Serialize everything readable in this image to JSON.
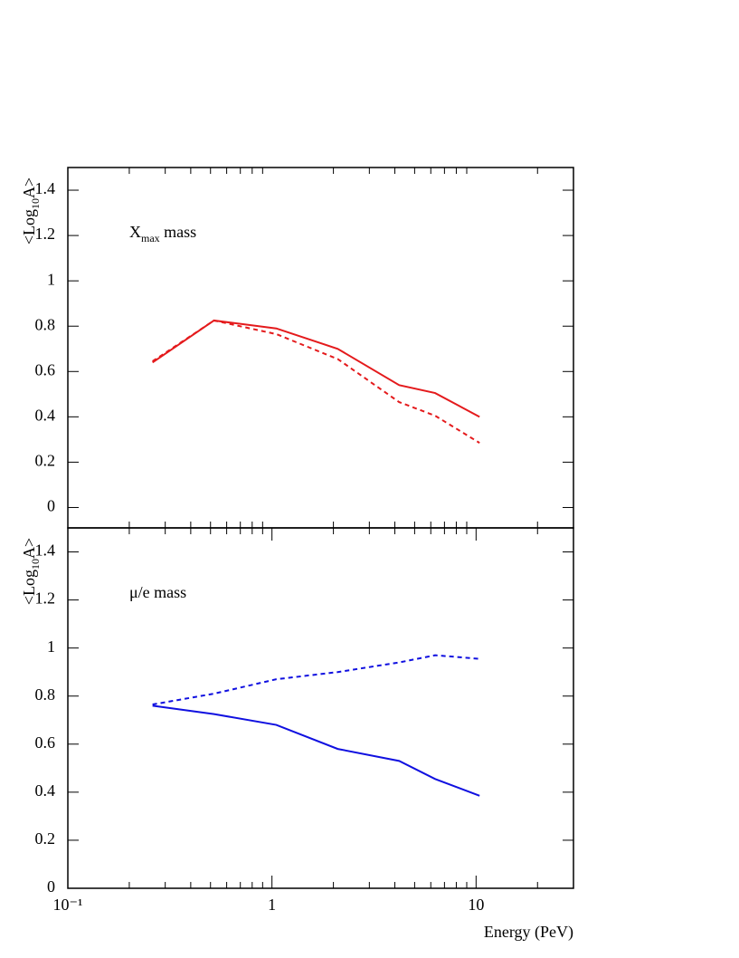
{
  "chart_data": [
    {
      "type": "line",
      "y_label": {
        "main": "<Log",
        "sub": "10",
        "end": "A>"
      },
      "annotation": {
        "main": "X",
        "sub": "max",
        "end": " mass"
      },
      "x": [
        0.26,
        0.52,
        1.05,
        2.1,
        4.2,
        6.3,
        10.4
      ],
      "series": [
        {
          "color": "#e41a1c",
          "dashed": false,
          "values": [
            0.64,
            0.825,
            0.79,
            0.7,
            0.54,
            0.505,
            0.4
          ]
        },
        {
          "color": "#e41a1c",
          "dashed": true,
          "values": [
            0.645,
            0.825,
            0.765,
            0.655,
            0.465,
            0.405,
            0.285
          ]
        }
      ],
      "xlim": [
        0.1,
        30
      ],
      "xscale": "log",
      "xticks_minor": [
        0.2,
        0.3,
        0.4,
        0.5,
        0.6,
        0.7,
        0.8,
        0.9,
        2,
        3,
        4,
        5,
        6,
        7,
        8,
        9,
        20
      ],
      "ylim": [
        -0.09,
        1.5
      ],
      "yticks": [
        0,
        0.2,
        0.4,
        0.6,
        0.8,
        1,
        1.2,
        1.4
      ]
    },
    {
      "type": "line",
      "y_label": {
        "main": "<Log",
        "sub": "10",
        "end": "A>"
      },
      "annotation": {
        "main": "μ/e mass"
      },
      "x_label": "Energy (PeV)",
      "x": [
        0.26,
        0.52,
        1.05,
        2.1,
        4.2,
        6.3,
        10.4
      ],
      "series": [
        {
          "color": "#1010e0",
          "dashed": false,
          "values": [
            0.76,
            0.725,
            0.68,
            0.58,
            0.53,
            0.455,
            0.385
          ]
        },
        {
          "color": "#1010e0",
          "dashed": true,
          "values": [
            0.765,
            0.81,
            0.87,
            0.9,
            0.94,
            0.97,
            0.955
          ]
        }
      ],
      "xlim": [
        0.1,
        30
      ],
      "xscale": "log",
      "xticks": [
        {
          "value": 0.1,
          "label": "10⁻¹"
        },
        1,
        10
      ],
      "xticks_minor": [
        0.2,
        0.3,
        0.4,
        0.5,
        0.6,
        0.7,
        0.8,
        0.9,
        2,
        3,
        4,
        5,
        6,
        7,
        8,
        9,
        20
      ],
      "ylim": [
        0,
        1.5
      ],
      "yticks": [
        0,
        0.2,
        0.4,
        0.6,
        0.8,
        1,
        1.2,
        1.4
      ]
    }
  ]
}
